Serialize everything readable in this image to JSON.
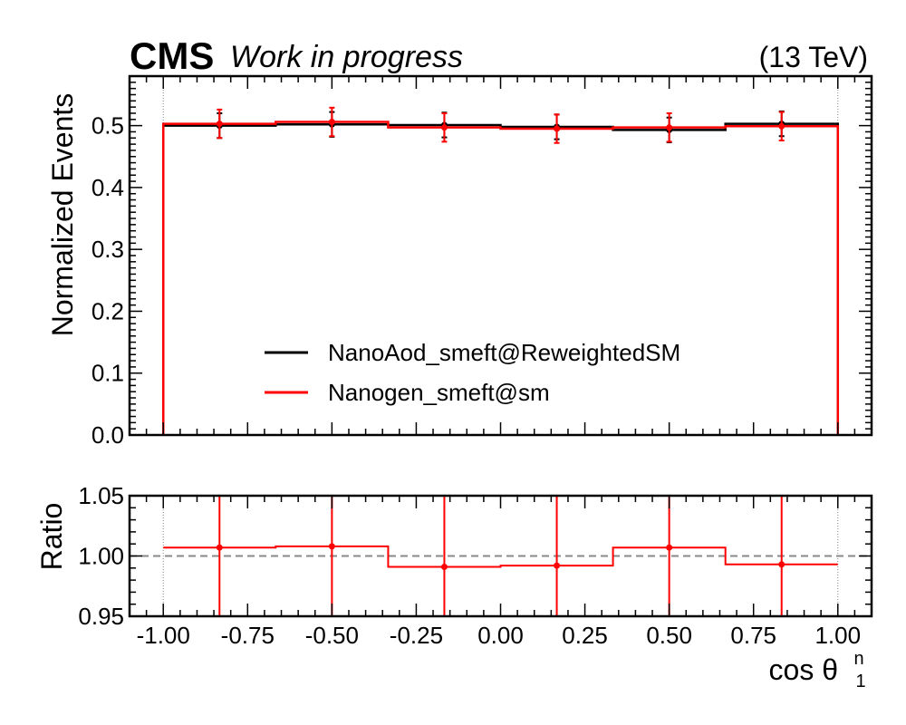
{
  "header": {
    "experiment": "CMS",
    "status": "Work in progress",
    "energy": "(13 TeV)"
  },
  "chart_data": {
    "type": "step-histogram-with-ratio",
    "x_label_main": "cos θ",
    "x_label_superscript": "n",
    "x_label_subscript": "1",
    "xlim": [
      -1.1,
      1.1
    ],
    "x_ticks": [
      -1.0,
      -0.75,
      -0.5,
      -0.25,
      0.0,
      0.25,
      0.5,
      0.75,
      1.0
    ],
    "x_tick_labels": [
      "-1.00",
      "-0.75",
      "-0.50",
      "-0.25",
      "0.00",
      "0.25",
      "0.50",
      "0.75",
      "1.00"
    ],
    "bin_edges": [
      -1.0,
      -0.6667,
      -0.3333,
      0.0,
      0.3333,
      0.6667,
      1.0
    ],
    "bin_centers": [
      -0.8333,
      -0.5,
      -0.1667,
      0.1667,
      0.5,
      0.8333
    ],
    "main": {
      "ylabel": "Normalized Events",
      "ylim": [
        0,
        0.58
      ],
      "y_ticks": [
        0.0,
        0.1,
        0.2,
        0.3,
        0.4,
        0.5
      ],
      "y_tick_labels": [
        "0.0",
        "0.1",
        "0.2",
        "0.3",
        "0.4",
        "0.5"
      ],
      "series": [
        {
          "name": "NanoAod_smeft@ReweightedSM",
          "color": "#000000",
          "values": [
            0.5,
            0.502,
            0.501,
            0.498,
            0.493,
            0.503
          ],
          "errors": [
            0.02,
            0.02,
            0.02,
            0.02,
            0.02,
            0.02
          ]
        },
        {
          "name": "Nanogen_smeft@sm",
          "color": "#ff0000",
          "values": [
            0.503,
            0.506,
            0.497,
            0.495,
            0.497,
            0.499
          ],
          "errors": [
            0.023,
            0.023,
            0.023,
            0.023,
            0.023,
            0.023
          ]
        }
      ],
      "legend_position": "lower-center"
    },
    "ratio": {
      "ylabel": "Ratio",
      "ylim": [
        0.95,
        1.05
      ],
      "y_ticks": [
        0.95,
        1.0,
        1.05
      ],
      "y_tick_labels": [
        "0.95",
        "1.00",
        "1.05"
      ],
      "reference_line": 1.0,
      "color": "#ff0000",
      "values": [
        1.007,
        1.008,
        0.991,
        0.992,
        1.007,
        0.993
      ],
      "errors": [
        0.09,
        0.09,
        0.09,
        0.09,
        0.09,
        0.09
      ]
    },
    "grid": false
  }
}
